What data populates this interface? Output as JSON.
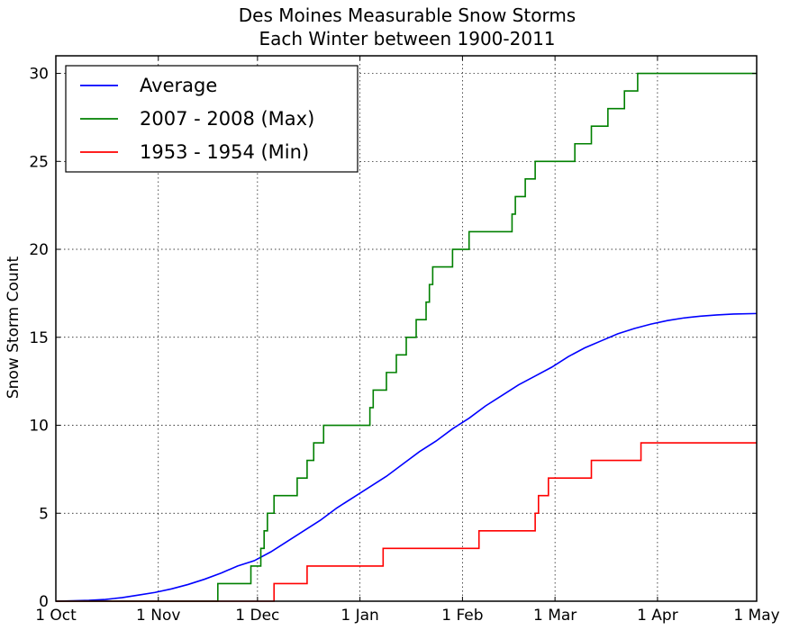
{
  "chart_data": {
    "type": "line",
    "title": "Des Moines Measurable Snow Storms",
    "subtitle": "Each Winter between 1900-2011",
    "xlabel": "",
    "ylabel": "Snow Storm Count",
    "x_unit": "day of season",
    "xlim": [
      0,
      212
    ],
    "ylim": [
      0,
      31
    ],
    "x_ticks": [
      {
        "day": 0,
        "label": "1 Oct"
      },
      {
        "day": 31,
        "label": "1 Nov"
      },
      {
        "day": 61,
        "label": "1 Dec"
      },
      {
        "day": 92,
        "label": "1 Jan"
      },
      {
        "day": 123,
        "label": "1 Feb"
      },
      {
        "day": 151,
        "label": "1 Mar"
      },
      {
        "day": 182,
        "label": "1 Apr"
      },
      {
        "day": 212,
        "label": "1 May"
      }
    ],
    "y_ticks": [
      0,
      5,
      10,
      15,
      20,
      25,
      30
    ],
    "grid": true,
    "legend_position": "top-left",
    "series": [
      {
        "name": "Average",
        "color": "#0000ff",
        "step": false,
        "x": [
          0,
          10,
          15,
          20,
          25,
          30,
          35,
          40,
          45,
          50,
          55,
          60,
          65,
          70,
          75,
          80,
          85,
          90,
          95,
          100,
          105,
          110,
          115,
          120,
          125,
          130,
          135,
          140,
          145,
          150,
          155,
          160,
          165,
          170,
          175,
          180,
          185,
          190,
          195,
          200,
          205,
          212
        ],
        "y": [
          0,
          0.05,
          0.1,
          0.2,
          0.35,
          0.5,
          0.7,
          0.95,
          1.25,
          1.6,
          2.0,
          2.3,
          2.8,
          3.4,
          4.0,
          4.6,
          5.3,
          5.9,
          6.5,
          7.1,
          7.8,
          8.5,
          9.1,
          9.8,
          10.4,
          11.1,
          11.7,
          12.3,
          12.8,
          13.3,
          13.9,
          14.4,
          14.8,
          15.2,
          15.5,
          15.75,
          15.95,
          16.1,
          16.2,
          16.27,
          16.32,
          16.35
        ]
      },
      {
        "name": "2007 - 2008 (Max)",
        "color": "#008000",
        "step": true,
        "x": [
          0,
          49,
          59,
          62,
          63,
          64,
          66,
          68,
          73,
          76,
          78,
          80,
          81,
          83,
          91,
          95,
          96,
          100,
          103,
          106,
          109,
          112,
          113,
          114,
          119,
          120,
          121,
          125,
          131,
          138,
          139,
          141,
          142,
          145,
          151,
          157,
          162,
          167,
          172,
          176,
          212
        ],
        "y": [
          0,
          1,
          2,
          3,
          4,
          5,
          6,
          6,
          7,
          8,
          9,
          9,
          10,
          10,
          10,
          11,
          12,
          13,
          14,
          15,
          16,
          17,
          18,
          19,
          19,
          20,
          20,
          21,
          21,
          22,
          23,
          23,
          24,
          25,
          25,
          26,
          27,
          28,
          29,
          30,
          30
        ]
      },
      {
        "name": "1953 - 1954 (Min)",
        "color": "#ff0000",
        "step": true,
        "x": [
          0,
          66,
          76,
          89,
          99,
          111,
          128,
          145,
          146,
          149,
          162,
          177,
          212
        ],
        "y": [
          0,
          1,
          2,
          2,
          3,
          3,
          4,
          5,
          6,
          7,
          8,
          9,
          9
        ]
      }
    ]
  }
}
